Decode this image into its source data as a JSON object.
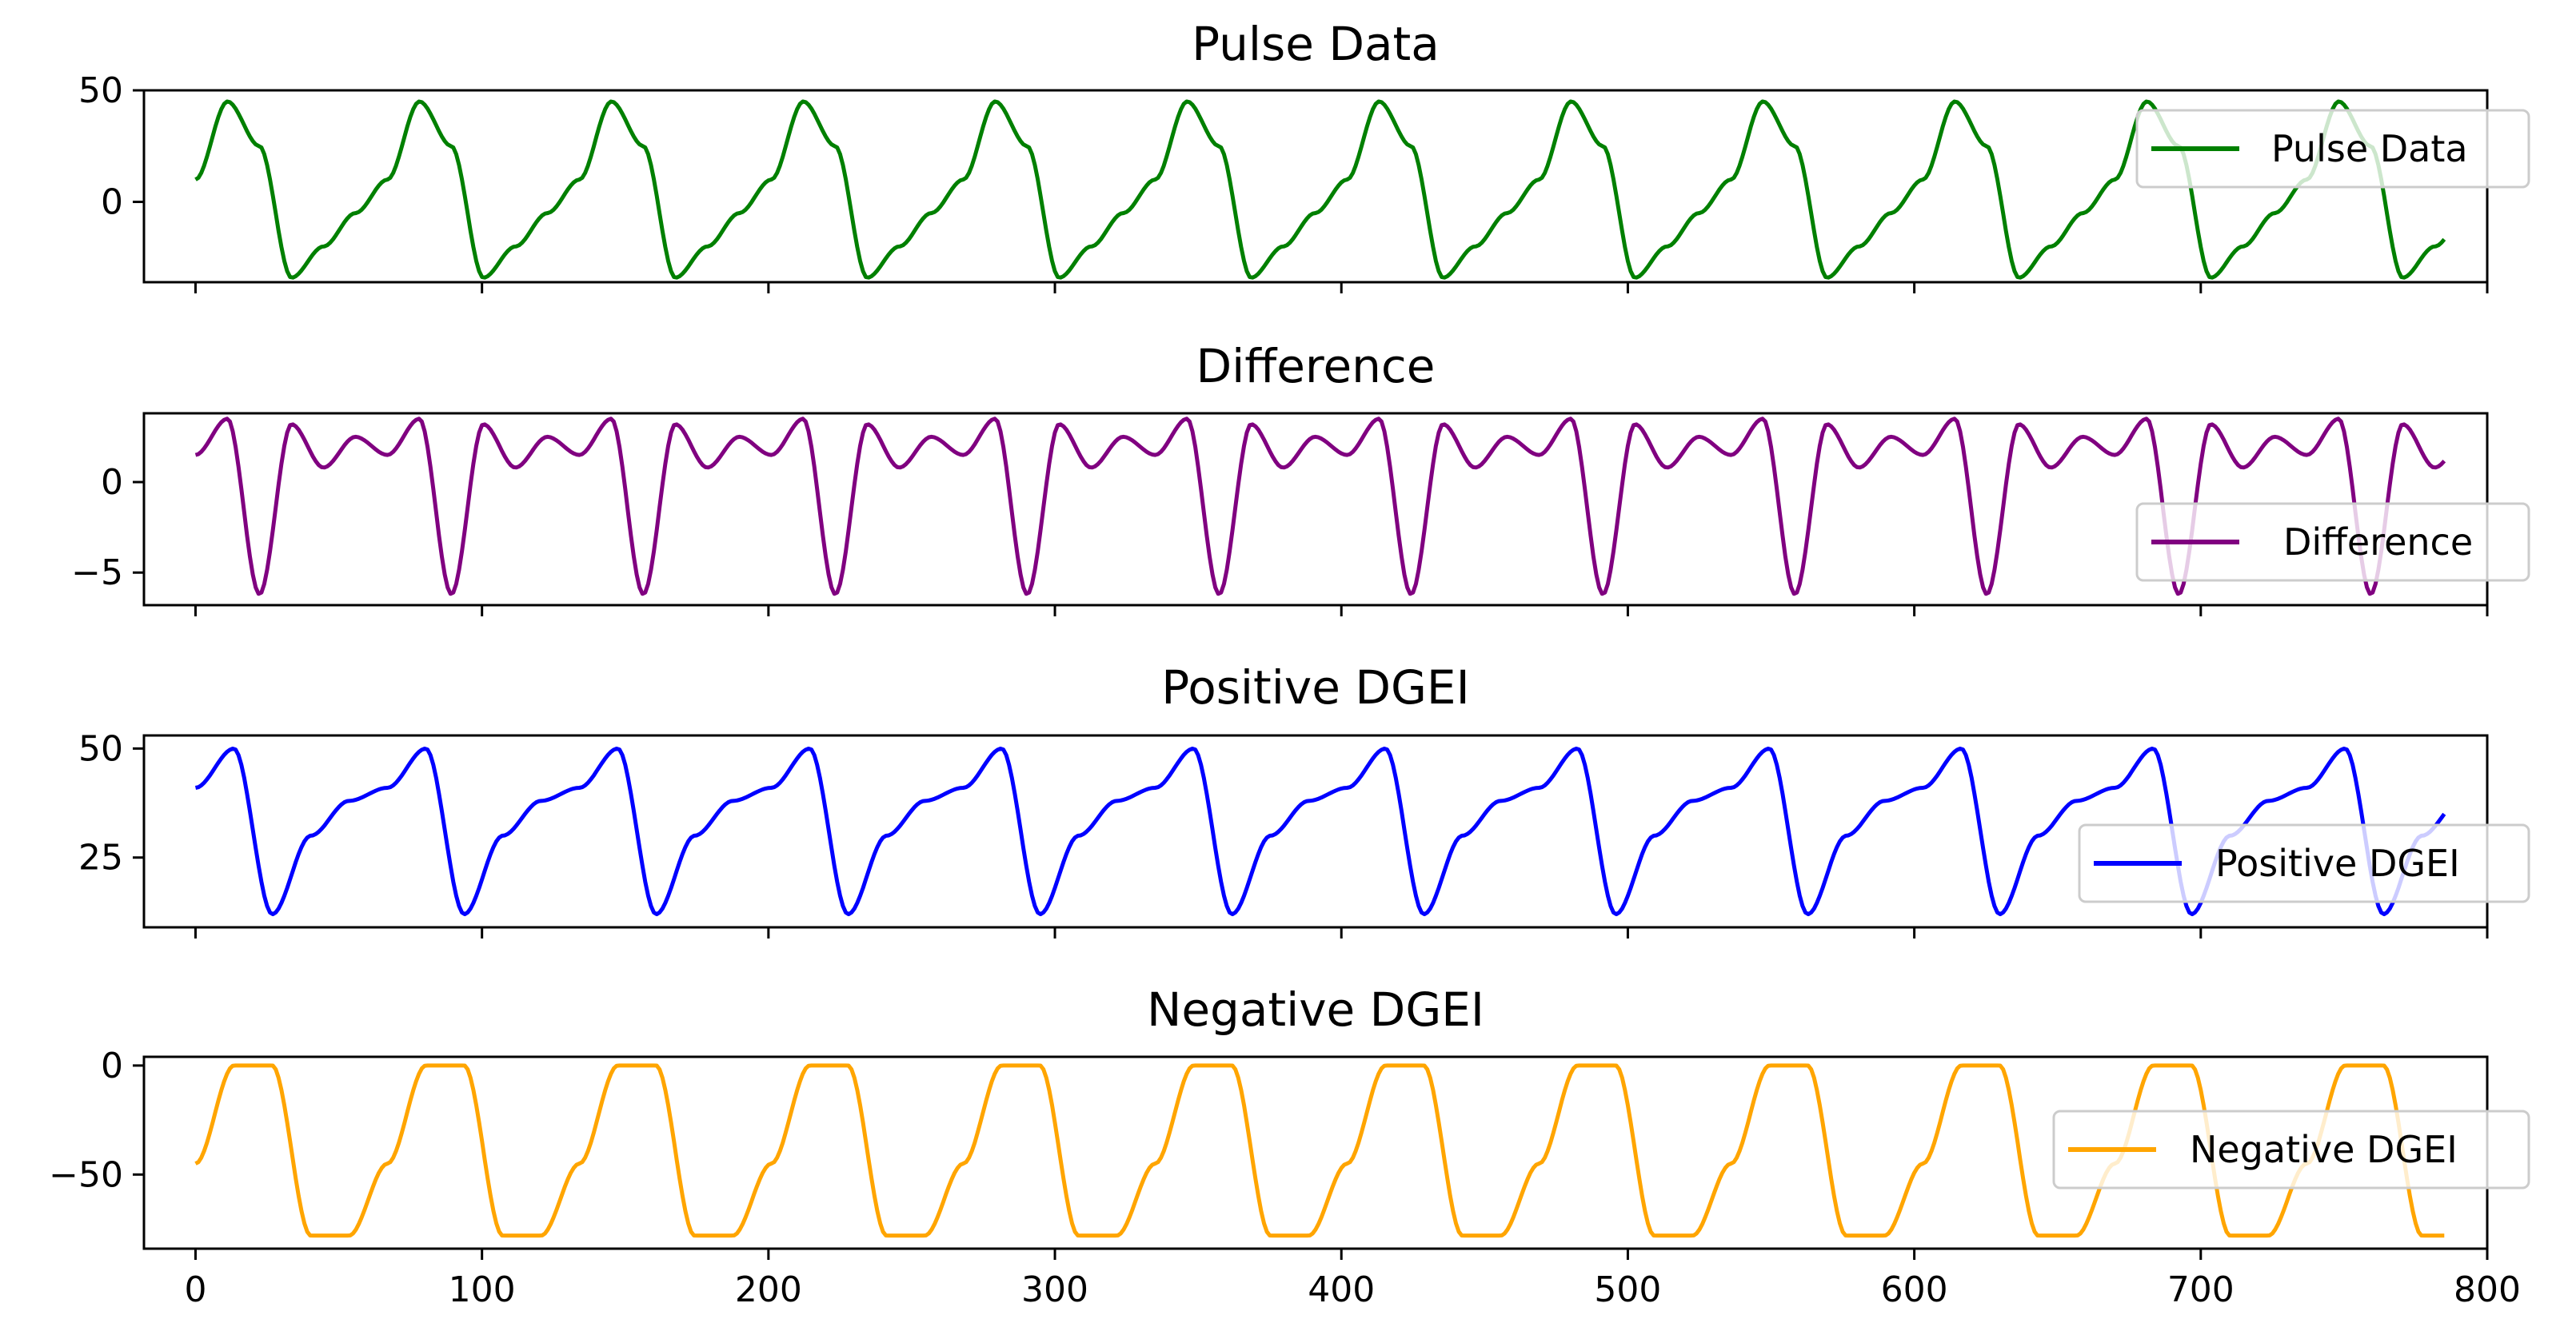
{
  "chart_data": [
    {
      "type": "line",
      "title": "Pulse Data",
      "series": [
        {
          "name": "Pulse Data",
          "color": "#008000"
        }
      ],
      "legend": {
        "label": "Pulse Data",
        "position": "upper-right"
      },
      "yticks": [
        50,
        0
      ],
      "ylim": [
        -36,
        50
      ],
      "xlim": [
        -18,
        800
      ],
      "period": 67,
      "samples": 785,
      "shape_y": [
        10,
        45,
        25,
        -34,
        -20,
        -5,
        10
      ]
    },
    {
      "type": "line",
      "title": "Difference",
      "series": [
        {
          "name": "Difference",
          "color": "#800080"
        }
      ],
      "legend": {
        "label": "Difference",
        "position": "lower-right"
      },
      "yticks": [
        0,
        -5
      ],
      "ylim": [
        -6.8,
        3.8
      ],
      "xlim": [
        -18,
        800
      ],
      "period": 67,
      "samples": 785,
      "shape_y": [
        1.5,
        3.5,
        -6.2,
        3.2,
        0.8,
        2.5,
        1.5
      ]
    },
    {
      "type": "line",
      "title": "Positive DGEI",
      "series": [
        {
          "name": "Positive DGEI",
          "color": "#0000ff"
        }
      ],
      "legend": {
        "label": "Positive DGEI",
        "position": "lower-right"
      },
      "yticks": [
        50,
        25
      ],
      "ylim": [
        9,
        53
      ],
      "xlim": [
        -18,
        800
      ],
      "period": 67,
      "samples": 785,
      "shape_y": [
        41,
        50,
        12,
        30,
        38,
        41
      ]
    },
    {
      "type": "line",
      "title": "Negative DGEI",
      "series": [
        {
          "name": "Negative DGEI",
          "color": "#ffa500"
        }
      ],
      "legend": {
        "label": "Negative DGEI",
        "position": "right"
      },
      "yticks": [
        0,
        -50
      ],
      "ylim": [
        -84,
        4
      ],
      "xlim": [
        -18,
        800
      ],
      "period": 67,
      "samples": 785,
      "shape_y": [
        -45,
        0,
        0,
        -78,
        -78,
        -45
      ]
    }
  ],
  "shared_x_axis": {
    "ticks": [
      0,
      100,
      200,
      300,
      400,
      500,
      600,
      700,
      800
    ],
    "tick_labels": [
      "0",
      "100",
      "200",
      "300",
      "400",
      "500",
      "600",
      "700",
      "800"
    ]
  }
}
